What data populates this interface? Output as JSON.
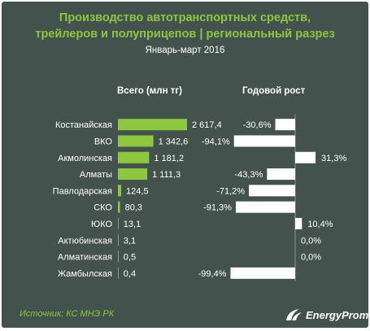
{
  "title_line1": "Производство автотранспортных средств,",
  "title_line2": "трейлеров и полуприцепов | региональный разрез",
  "subtitle": "Январь-март 2016",
  "header_total": "Всего (млн тг)",
  "header_growth": "Годовой рост",
  "source": "Источник: КС МНЭ РК",
  "logo": "EnergyProm",
  "colors": {
    "background": "#44524e",
    "bar": "#8dc63f",
    "title": "#8dc63f",
    "growth_bar": "#ffffff"
  },
  "chart_data": {
    "type": "bar",
    "orientation": "horizontal",
    "categories": [
      "Костанайская",
      "ВКО",
      "Акмолинская",
      "Алматы",
      "Павлодарская",
      "СКО",
      "ЮКО",
      "Актюбинская",
      "Алматинская",
      "Жамбылская"
    ],
    "series": [
      {
        "name": "Всего (млн тг)",
        "values": [
          2617.4,
          1342.6,
          1181.2,
          1111.3,
          124.5,
          80.3,
          13.1,
          3.1,
          0.5,
          0.4
        ],
        "labels": [
          "2 617,4",
          "1 342,6",
          "1 181,2",
          "1 111,3",
          "124,5",
          "80,3",
          "13,1",
          "3,1",
          "0,5",
          "0,4"
        ]
      },
      {
        "name": "Годовой рост",
        "values": [
          -30.6,
          -94.1,
          31.3,
          -43.3,
          -71.2,
          -91.3,
          10.4,
          0.0,
          0.0,
          -99.4
        ],
        "labels": [
          "-30,6%",
          "-94,1%",
          "31,3%",
          "-43,3%",
          "-71,2%",
          "-91,3%",
          "10,4%",
          "0,0%",
          "0,0%",
          "-99,4%"
        ]
      }
    ]
  }
}
